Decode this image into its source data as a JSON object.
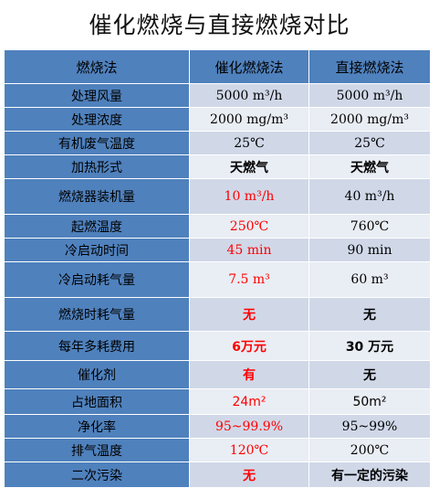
{
  "title": "催化燃烧与直接燃烧对比",
  "headers": [
    "燃烧法",
    "催化燃烧法",
    "直接燃烧法"
  ],
  "rows": [
    {
      "label": "处理风量",
      "catalytic": "5000 m³/h",
      "direct": "5000 m³/h"
    },
    {
      "label": "处理浓度",
      "catalytic": "2000 mg/m³",
      "direct": "2000 mg/m³"
    },
    {
      "label": "有机废气温度",
      "catalytic": "25℃",
      "direct": "25℃"
    },
    {
      "label": "加热形式",
      "catalytic": "天燃气",
      "direct": "天燃气"
    },
    {
      "label": "燃烧器装机量",
      "catalytic": "10 m³/h",
      "direct": "40 m³/h"
    },
    {
      "label": "起燃温度",
      "catalytic": "250℃",
      "direct": "760℃"
    },
    {
      "label": "冷启动时间",
      "catalytic": "45 min",
      "direct": "90 min"
    },
    {
      "label": "冷启动耗气量",
      "catalytic": "7.5 m³",
      "direct": "60 m³"
    },
    {
      "label": "燃烧时耗气量",
      "catalytic": "无",
      "direct": "无"
    },
    {
      "label": "每年多耗费用",
      "catalytic": "6万元",
      "direct": "30 万元"
    },
    {
      "label": "催化剂",
      "catalytic": "有",
      "direct": "无"
    },
    {
      "label": "占地面积",
      "catalytic": "24m²",
      "direct": "50m²"
    },
    {
      "label": "净化率",
      "catalytic": "95~99.9%",
      "direct": "95~99%"
    },
    {
      "label": "排气温度",
      "catalytic": "120℃",
      "direct": "200℃"
    },
    {
      "label": "二次污染",
      "catalytic": "无",
      "direct": "有一定的污染"
    }
  ],
  "colors": {
    "header_blue": "#4f81bd",
    "row_dark": "#d0d8e8",
    "row_light": "#e9edf4",
    "highlight_red": "#ff0000"
  }
}
